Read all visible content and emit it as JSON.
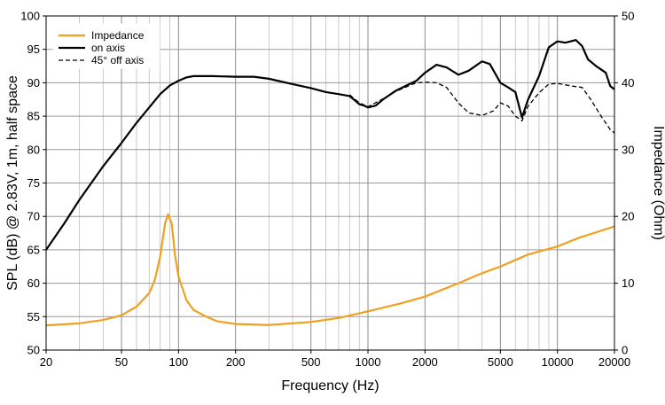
{
  "chart_data": {
    "type": "line",
    "xlabel": "Frequency (Hz)",
    "ylabel_left": "SPL (dB) @ 2.83V, 1m, half space",
    "ylabel_right": "Impedance (Ohm)",
    "x_scale": "log",
    "xlim": [
      20,
      20000
    ],
    "ylim_left": [
      50,
      100
    ],
    "ylim_right": [
      0,
      50
    ],
    "grid": true,
    "legend_position": "top-left",
    "x_ticks": [
      20,
      50,
      100,
      200,
      500,
      1000,
      2000,
      5000,
      10000,
      20000
    ],
    "x_tick_labels": [
      "20",
      "50",
      "100",
      "200",
      "500",
      "1000",
      "2000",
      "5000",
      "10000",
      "20000"
    ],
    "y_left_ticks": [
      50,
      55,
      60,
      65,
      70,
      75,
      80,
      85,
      90,
      95,
      100
    ],
    "y_left_tick_labels": [
      "50",
      "55",
      "60",
      "65",
      "70",
      "75",
      "80",
      "85",
      "90",
      "95",
      "100"
    ],
    "y_right_ticks": [
      0,
      10,
      20,
      30,
      40,
      50
    ],
    "y_right_tick_labels": [
      "0",
      "10",
      "20",
      "30",
      "40",
      "50"
    ],
    "series": [
      {
        "name": "Impedance",
        "axis": "right",
        "color": "#f0a020",
        "dash": "solid",
        "points": [
          [
            20,
            3.7
          ],
          [
            30,
            4.0
          ],
          [
            40,
            4.5
          ],
          [
            50,
            5.2
          ],
          [
            60,
            6.5
          ],
          [
            70,
            8.5
          ],
          [
            75,
            10.5
          ],
          [
            80,
            14
          ],
          [
            85,
            19
          ],
          [
            88,
            20.3
          ],
          [
            92,
            19
          ],
          [
            96,
            14
          ],
          [
            100,
            11
          ],
          [
            110,
            7.5
          ],
          [
            120,
            6
          ],
          [
            140,
            5
          ],
          [
            160,
            4.3
          ],
          [
            200,
            3.9
          ],
          [
            300,
            3.75
          ],
          [
            500,
            4.2
          ],
          [
            700,
            4.8
          ],
          [
            1000,
            5.8
          ],
          [
            1500,
            7
          ],
          [
            2000,
            8
          ],
          [
            3000,
            10
          ],
          [
            4000,
            11.5
          ],
          [
            5000,
            12.5
          ],
          [
            7000,
            14.3
          ],
          [
            10000,
            15.5
          ],
          [
            13000,
            16.8
          ],
          [
            20000,
            18.5
          ]
        ]
      },
      {
        "name": "on axis",
        "axis": "left",
        "color": "#000000",
        "dash": "solid",
        "points": [
          [
            20,
            65
          ],
          [
            25,
            69
          ],
          [
            30,
            72.5
          ],
          [
            40,
            77.5
          ],
          [
            50,
            81
          ],
          [
            60,
            84
          ],
          [
            70,
            86.3
          ],
          [
            80,
            88.3
          ],
          [
            90,
            89.6
          ],
          [
            100,
            90.3
          ],
          [
            110,
            90.8
          ],
          [
            120,
            91
          ],
          [
            150,
            91
          ],
          [
            200,
            90.9
          ],
          [
            250,
            90.9
          ],
          [
            300,
            90.6
          ],
          [
            400,
            89.8
          ],
          [
            500,
            89.2
          ],
          [
            600,
            88.6
          ],
          [
            700,
            88.3
          ],
          [
            800,
            88
          ],
          [
            850,
            87.4
          ],
          [
            900,
            86.8
          ],
          [
            950,
            86.6
          ],
          [
            1000,
            86.3
          ],
          [
            1100,
            86.6
          ],
          [
            1200,
            87.5
          ],
          [
            1400,
            88.8
          ],
          [
            1600,
            89.6
          ],
          [
            1800,
            90.3
          ],
          [
            2000,
            91.5
          ],
          [
            2300,
            92.7
          ],
          [
            2600,
            92.3
          ],
          [
            3000,
            91.2
          ],
          [
            3400,
            91.8
          ],
          [
            4000,
            93.2
          ],
          [
            4400,
            92.8
          ],
          [
            5000,
            90
          ],
          [
            5500,
            89.3
          ],
          [
            6000,
            88.6
          ],
          [
            6500,
            84.8
          ],
          [
            7000,
            87.5
          ],
          [
            8000,
            91
          ],
          [
            9000,
            95.3
          ],
          [
            10000,
            96.2
          ],
          [
            11000,
            96
          ],
          [
            12500,
            96.4
          ],
          [
            13500,
            95.5
          ],
          [
            14500,
            93.5
          ],
          [
            16000,
            92.5
          ],
          [
            18000,
            91.5
          ],
          [
            19000,
            89.5
          ],
          [
            20000,
            89
          ]
        ]
      },
      {
        "name": "45° off axis",
        "axis": "left",
        "color": "#000000",
        "dash": "dashed",
        "points": [
          [
            800,
            88.2
          ],
          [
            900,
            87
          ],
          [
            1000,
            86.4
          ],
          [
            1200,
            87.6
          ],
          [
            1400,
            88.7
          ],
          [
            1600,
            89.4
          ],
          [
            1800,
            90
          ],
          [
            2000,
            90.1
          ],
          [
            2300,
            90
          ],
          [
            2600,
            89.3
          ],
          [
            3000,
            87
          ],
          [
            3400,
            85.5
          ],
          [
            4000,
            85.1
          ],
          [
            4600,
            85.8
          ],
          [
            5000,
            87
          ],
          [
            5500,
            86.5
          ],
          [
            6000,
            85
          ],
          [
            6500,
            84.3
          ],
          [
            7000,
            86.5
          ],
          [
            8000,
            88.5
          ],
          [
            9000,
            89.8
          ],
          [
            10000,
            89.9
          ],
          [
            12000,
            89.5
          ],
          [
            13500,
            89.3
          ],
          [
            15000,
            87.5
          ],
          [
            17000,
            85
          ],
          [
            19000,
            83
          ],
          [
            20000,
            82.5
          ]
        ]
      }
    ]
  }
}
